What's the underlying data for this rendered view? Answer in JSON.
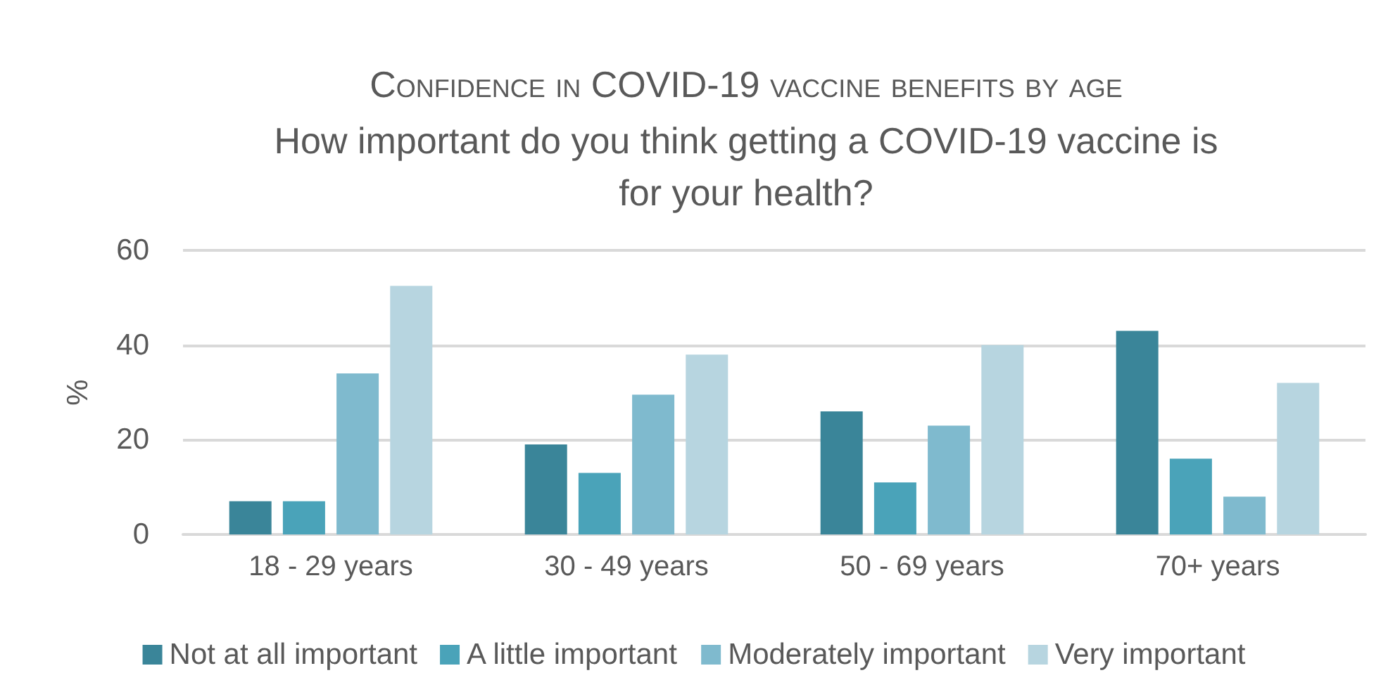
{
  "chart_data": {
    "type": "bar",
    "title": "Confidence in COVID-19 vaccine benefits by age",
    "subtitle": "How important do you think getting a COVID-19 vaccine is for your health?",
    "ylabel": "%",
    "categories": [
      "18 - 29 years",
      "30 - 49 years",
      "50 - 69 years",
      "70+ years"
    ],
    "series": [
      {
        "name": "Not at all important",
        "color": "#3a8599",
        "values": [
          7,
          19,
          26,
          43
        ]
      },
      {
        "name": "A little important",
        "color": "#4aa3b9",
        "values": [
          7,
          13,
          11,
          16
        ]
      },
      {
        "name": "Moderately important",
        "color": "#7fbace",
        "values": [
          34,
          29.5,
          23,
          8
        ]
      },
      {
        "name": "Very important",
        "color": "#b7d5e0",
        "values": [
          52.5,
          38,
          40,
          32
        ]
      }
    ],
    "ylim": [
      0,
      60
    ],
    "yticks": [
      0,
      20,
      40,
      60
    ],
    "grid": "y",
    "legend": "bottom"
  }
}
